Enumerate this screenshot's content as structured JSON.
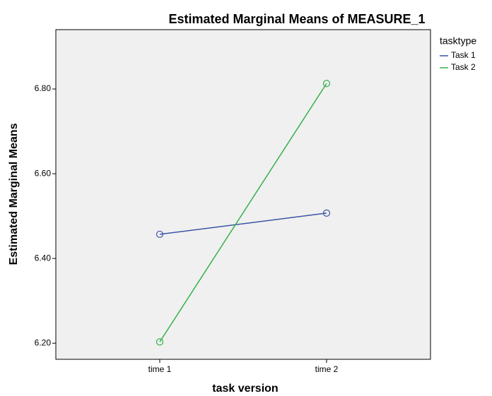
{
  "chart_data": {
    "type": "line",
    "title": "Estimated Marginal Means of MEASURE_1",
    "x_label": "task version",
    "y_label": "Estimated Marginal Means",
    "legend_title": "tasktype",
    "categories": [
      "time 1",
      "time 2"
    ],
    "series": [
      {
        "name": "Task 1",
        "color": "#3a55a4",
        "values": [
          6.457,
          6.507
        ]
      },
      {
        "name": "Task 2",
        "color": "#36b04a",
        "values": [
          6.203,
          6.813
        ]
      }
    ],
    "ylim": [
      6.162,
      6.94
    ],
    "yticks": [
      {
        "value": 6.2,
        "label": "6.20"
      },
      {
        "value": 6.4,
        "label": "6.40"
      },
      {
        "value": 6.6,
        "label": "6.60"
      },
      {
        "value": 6.8,
        "label": "6.80"
      }
    ],
    "legend": "right",
    "markers": true
  }
}
